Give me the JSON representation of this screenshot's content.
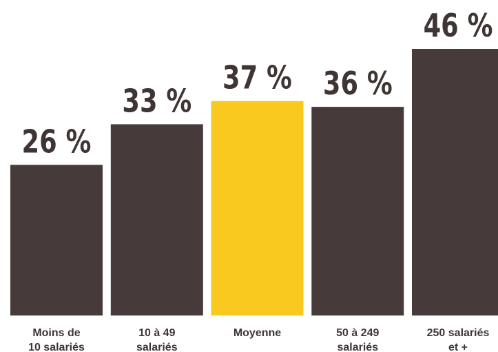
{
  "chart_data": {
    "type": "bar",
    "categories": [
      [
        "Moins de",
        "10 salariés"
      ],
      [
        "10 à 49",
        "salariés"
      ],
      [
        "Moyenne"
      ],
      [
        "50 à 249",
        "salariés"
      ],
      [
        "250 salariés",
        "et +"
      ]
    ],
    "values": [
      26,
      33,
      37,
      36,
      46
    ],
    "value_labels": [
      "26 %",
      "33 %",
      "37 %",
      "36 %",
      "46 %"
    ],
    "ylim": [
      0,
      46
    ],
    "grid": false,
    "legend": "none",
    "highlight_index": 2,
    "colors": {
      "bar": "#463a3a",
      "highlight": "#f9c920",
      "text": "#3f3534"
    }
  }
}
